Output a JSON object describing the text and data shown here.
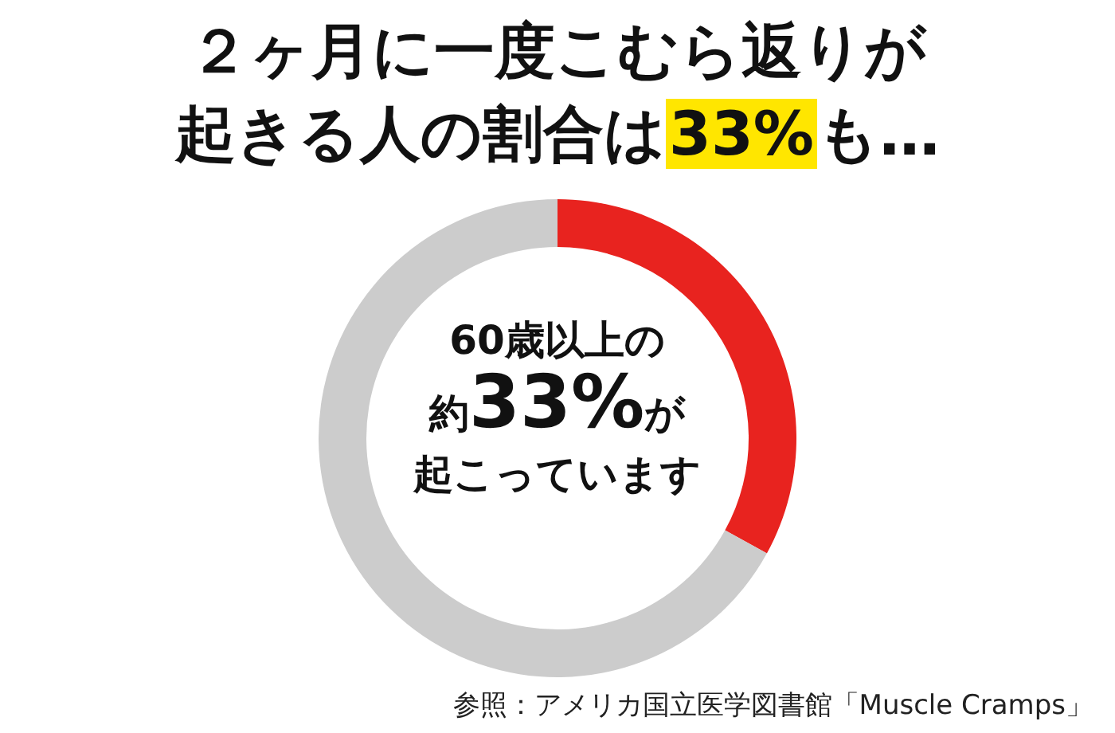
{
  "chart_data": {
    "type": "donut",
    "title": "２ヶ月に一度こむら返りが起きる人の割合は33%も…",
    "categories": [
      null,
      null
    ],
    "values": [
      33,
      67
    ],
    "colors": [
      "#e8231f",
      "#cccccc"
    ],
    "annotations": [
      "60歳以上の",
      "約33%が",
      "起こっています",
      "参照：アメリカ国立医学図書館「Muscle Cramps」"
    ]
  }
}
